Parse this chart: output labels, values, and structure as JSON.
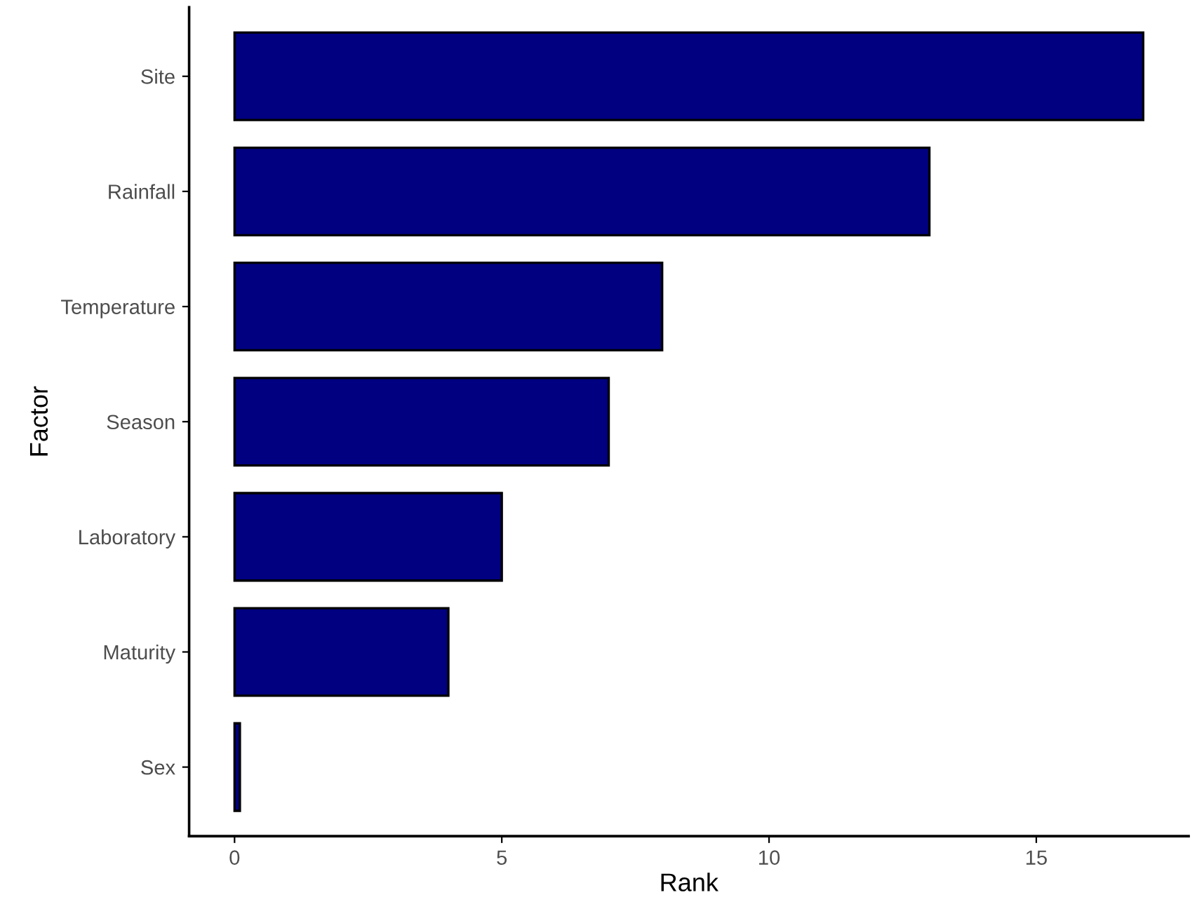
{
  "chart_data": {
    "type": "bar",
    "orientation": "horizontal",
    "xlabel": "Rank",
    "ylabel": "Factor",
    "categories": [
      "Site",
      "Rainfall",
      "Temperature",
      "Season",
      "Laboratory",
      "Maturity",
      "Sex"
    ],
    "values": [
      17,
      13,
      8,
      7,
      5,
      4,
      0.1
    ],
    "color": "#000080",
    "xlim": [
      -0.85,
      17.85
    ],
    "xticks": [
      0,
      5,
      10,
      15
    ],
    "grid": false,
    "legend": false
  }
}
